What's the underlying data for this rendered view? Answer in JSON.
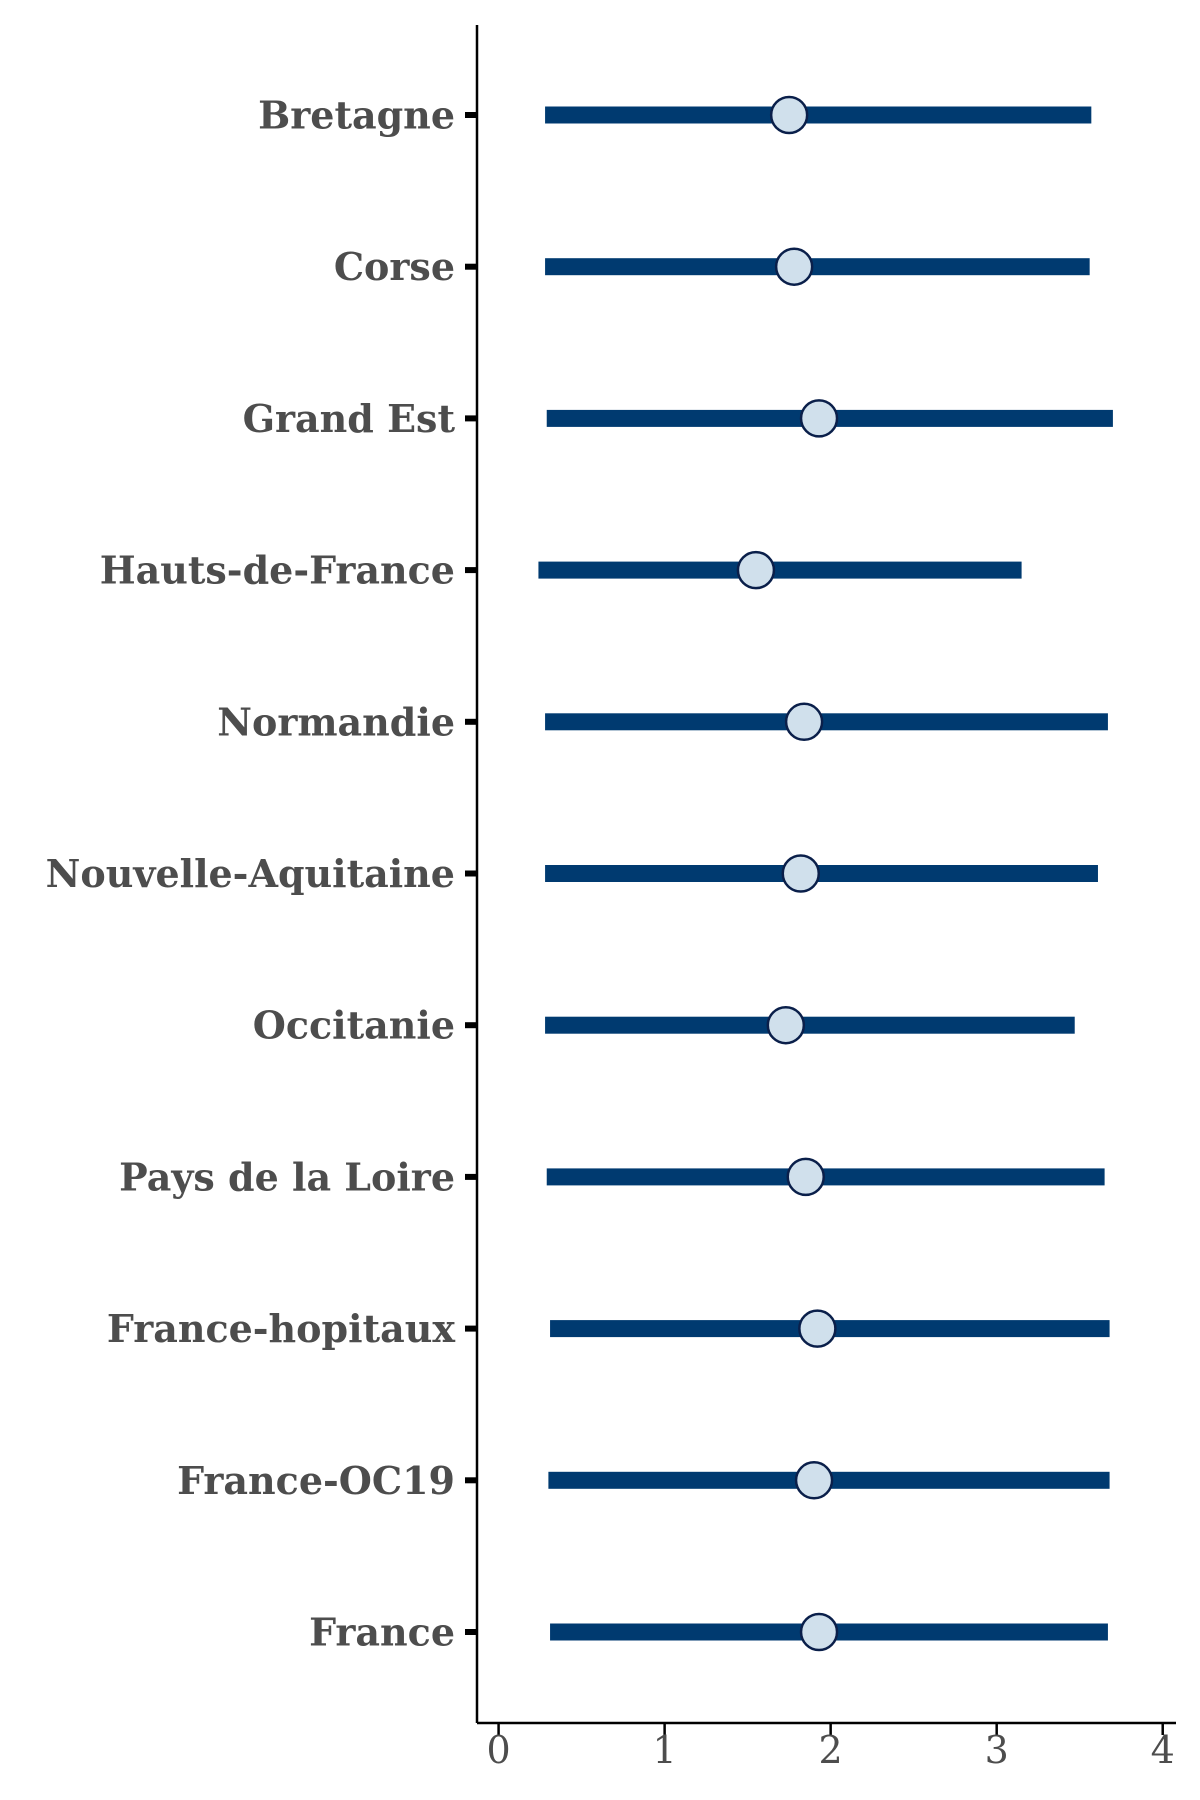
{
  "chart_data": {
    "type": "dot-interval",
    "orientation": "horizontal",
    "categories": [
      "Bretagne",
      "Corse",
      "Grand Est",
      "Hauts-de-France",
      "Normandie",
      "Nouvelle-Aquitaine",
      "Occitanie",
      "Pays de la Loire",
      "France-hopitaux",
      "France-OC19",
      "France"
    ],
    "series": [
      {
        "estimates": [
          1.75,
          1.78,
          1.93,
          1.55,
          1.84,
          1.82,
          1.73,
          1.85,
          1.92,
          1.9,
          1.93
        ],
        "lower": [
          0.28,
          0.28,
          0.29,
          0.24,
          0.28,
          0.28,
          0.28,
          0.29,
          0.31,
          0.3,
          0.31
        ],
        "upper": [
          3.57,
          3.56,
          3.7,
          3.15,
          3.67,
          3.61,
          3.47,
          3.65,
          3.68,
          3.68,
          3.67
        ]
      }
    ],
    "x_ticks": [
      "0",
      "1",
      "2",
      "3",
      "4"
    ],
    "xlim": [
      -0.13,
      4.08
    ],
    "title": "",
    "xlabel": "",
    "ylabel": "",
    "grid": false,
    "colors": {
      "interval": "#003a70",
      "point_fill": "#d0e0ec",
      "point_stroke": "#0a1f4a",
      "axis": "#000000",
      "text": "#4d4d4d"
    }
  }
}
